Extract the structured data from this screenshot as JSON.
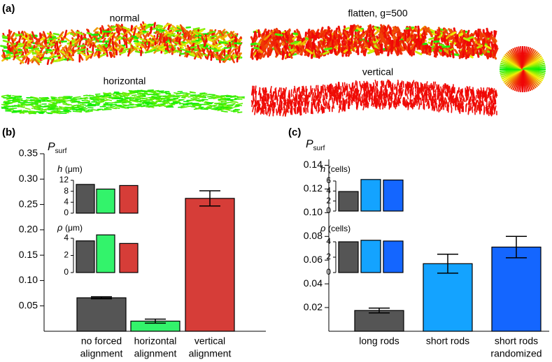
{
  "panel_labels": [
    "(a)",
    "(b)",
    "(c)"
  ],
  "panel_a": {
    "labels": [
      "normal",
      "flatten, g=500",
      "horizontal",
      "vertical"
    ]
  },
  "chart_data": [
    {
      "type": "bar",
      "ylabel": {
        "symbol": "P",
        "sub": "surf"
      },
      "categories": [
        [
          "no forced",
          "alignment"
        ],
        [
          "horizontal",
          "alignment"
        ],
        [
          "vertical",
          "alignment"
        ]
      ],
      "values": [
        0.066,
        0.02,
        0.262
      ],
      "errors": [
        0.002,
        0.004,
        0.015
      ],
      "colors": [
        "#555555",
        "#33f36b",
        "#d63d38"
      ],
      "ylim": [
        0,
        0.35
      ],
      "yticks": [
        0.05,
        {
          "value": 0.1,
          "label": "0.10"
        },
        0.15,
        {
          "value": 0.2,
          "label": "0.20"
        },
        0.25,
        {
          "value": 0.3,
          "label": "0.30"
        },
        0.35
      ]
    },
    {
      "type": "bar",
      "ylabel": {
        "symbol": "h",
        "unit": "(μm)"
      },
      "values": [
        10.5,
        8.8,
        10.1
      ],
      "colors": [
        "#555555",
        "#33f36b",
        "#d63d38"
      ],
      "ylim": [
        0,
        12
      ],
      "yticks": [
        0,
        4,
        8,
        12
      ]
    },
    {
      "type": "bar",
      "ylabel": {
        "symbol": "ρ",
        "unit": "(μm)"
      },
      "values": [
        3.7,
        4.4,
        3.4
      ],
      "colors": [
        "#555555",
        "#33f36b",
        "#d63d38"
      ],
      "ylim": [
        0,
        4
      ],
      "yticks": [
        0,
        2,
        4
      ]
    },
    {
      "type": "bar",
      "ylabel": {
        "symbol": "P",
        "sub": "surf"
      },
      "categories": [
        [
          "long rods"
        ],
        [
          "short rods"
        ],
        [
          "short rods",
          "randomized"
        ]
      ],
      "values": [
        0.0175,
        0.057,
        0.071
      ],
      "errors": [
        0.002,
        0.008,
        0.009
      ],
      "colors": [
        "#555555",
        "#14a3ff",
        "#1466ff"
      ],
      "ylim": [
        0,
        0.145
      ],
      "yticks": [
        0.02,
        0.04,
        0.06,
        0.08,
        {
          "value": 0.1,
          "label": "0.10"
        },
        0.12,
        0.14
      ]
    },
    {
      "type": "bar",
      "ylabel": {
        "symbol": "h",
        "unit": "(cells)"
      },
      "values": [
        3.9,
        6.3,
        6.2
      ],
      "colors": [
        "#555555",
        "#14a3ff",
        "#1466ff"
      ],
      "ylim": [
        0,
        6
      ],
      "yticks": [
        0,
        2,
        4,
        6
      ]
    },
    {
      "type": "bar",
      "ylabel": {
        "symbol": "ρ",
        "unit": "(cells)"
      },
      "values": [
        4.0,
        4.2,
        4.1
      ],
      "colors": [
        "#555555",
        "#14a3ff",
        "#1466ff"
      ],
      "ylim": [
        0,
        4
      ],
      "yticks": [
        0,
        2,
        4
      ]
    }
  ]
}
